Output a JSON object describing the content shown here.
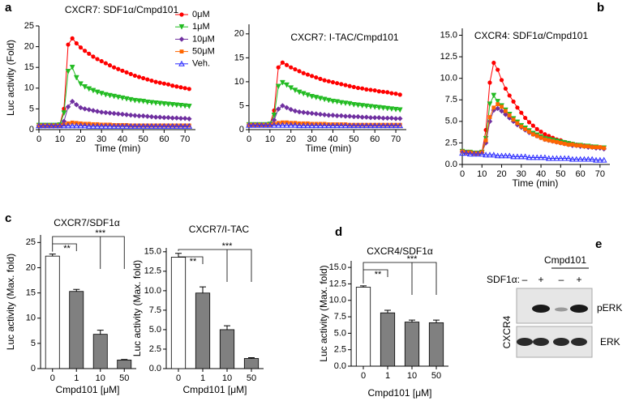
{
  "panel_labels": [
    "a",
    "b",
    "c",
    "d",
    "e"
  ],
  "chart_data": [
    {
      "type": "line",
      "title": "CXCR7: SDF1α/Cmpd101",
      "x_label": "Time (min)",
      "y_label": "Luc activity (Fold)",
      "x": [
        0,
        2,
        4,
        6,
        8,
        10,
        12,
        14,
        16,
        18,
        20,
        22,
        24,
        26,
        28,
        30,
        32,
        34,
        36,
        38,
        40,
        42,
        44,
        46,
        48,
        50,
        52,
        54,
        56,
        58,
        60,
        62,
        64,
        66,
        68,
        70,
        72
      ],
      "xlim": [
        0,
        75
      ],
      "xticks": [
        0,
        10,
        20,
        30,
        40,
        50,
        60,
        70
      ],
      "ylim": [
        0,
        25
      ],
      "yticks": [
        0,
        5,
        10,
        15,
        20,
        25
      ],
      "legend": "upper right",
      "series": [
        {
          "name": "0μM",
          "color": "#ff0000",
          "marker": "circle",
          "values": [
            1,
            1,
            1,
            1,
            1,
            1.2,
            5,
            20.5,
            22,
            20.8,
            19.8,
            19,
            18.3,
            17.6,
            17,
            16.5,
            16,
            15.5,
            15,
            14.6,
            14.2,
            13.8,
            13.4,
            13,
            12.7,
            12.4,
            12.1,
            11.8,
            11.5,
            11.3,
            11.1,
            10.9,
            10.6,
            10.4,
            10.2,
            10,
            9.8
          ]
        },
        {
          "name": "1μM",
          "color": "#22bb22",
          "marker": "triangle-down",
          "values": [
            1,
            1,
            1,
            1,
            1,
            1.1,
            4,
            14,
            15,
            12.5,
            11,
            10.3,
            9.8,
            9.4,
            9,
            8.7,
            8.4,
            8.2,
            8,
            7.8,
            7.6,
            7.4,
            7.2,
            7,
            6.9,
            6.8,
            6.6,
            6.5,
            6.4,
            6.3,
            6.2,
            6.1,
            6,
            5.9,
            5.8,
            5.7,
            5.6
          ]
        },
        {
          "name": "10μM",
          "color": "#7030a0",
          "marker": "diamond",
          "values": [
            1,
            1,
            1,
            1,
            1,
            1,
            2,
            5.5,
            6.8,
            6,
            5.3,
            5,
            4.8,
            4.6,
            4.4,
            4.2,
            4.1,
            4,
            3.9,
            3.8,
            3.7,
            3.6,
            3.5,
            3.4,
            3.3,
            3.3,
            3.2,
            3.1,
            3,
            3,
            2.9,
            2.9,
            2.8,
            2.8,
            2.7,
            2.7,
            2.6
          ]
        },
        {
          "name": "50μM",
          "color": "#ff6600",
          "marker": "square",
          "values": [
            1,
            1,
            1,
            1,
            1,
            1,
            1.2,
            1.5,
            1.7,
            1.6,
            1.5,
            1.4,
            1.4,
            1.3,
            1.3,
            1.2,
            1.2,
            1.2,
            1.1,
            1.1,
            1.1,
            1.1,
            1,
            1,
            1,
            1,
            1,
            1,
            1,
            1,
            1,
            1,
            1,
            1,
            1,
            1,
            1
          ]
        },
        {
          "name": "Veh.",
          "color": "#2a2aff",
          "marker": "triangle-up-open",
          "values": [
            0.9,
            0.9,
            0.9,
            0.9,
            0.9,
            0.9,
            0.9,
            0.9,
            0.9,
            0.9,
            0.9,
            0.9,
            0.8,
            0.8,
            0.8,
            0.8,
            0.8,
            0.8,
            0.8,
            0.8,
            0.8,
            0.8,
            0.8,
            0.8,
            0.8,
            0.8,
            0.8,
            0.8,
            0.8,
            0.8,
            0.8,
            0.8,
            0.8,
            0.8,
            0.8,
            0.8,
            0.8
          ]
        }
      ]
    },
    {
      "type": "line",
      "title": "CXCR7: I-TAC/Cmpd101",
      "x_label": "Time (min)",
      "x": [
        0,
        2,
        4,
        6,
        8,
        10,
        12,
        14,
        16,
        18,
        20,
        22,
        24,
        26,
        28,
        30,
        32,
        34,
        36,
        38,
        40,
        42,
        44,
        46,
        48,
        50,
        52,
        54,
        56,
        58,
        60,
        62,
        64,
        66,
        68,
        70,
        72
      ],
      "xlim": [
        0,
        75
      ],
      "xticks": [
        0,
        10,
        20,
        30,
        40,
        50,
        60,
        70
      ],
      "ylim": [
        0,
        22
      ],
      "yticks": [
        0,
        5,
        10,
        15,
        20
      ],
      "series": [
        {
          "color": "#ff0000",
          "marker": "circle",
          "values": [
            1,
            1,
            1,
            1,
            1,
            1.1,
            4,
            13,
            14,
            13.5,
            13,
            12.6,
            12.2,
            11.8,
            11.5,
            11.2,
            10.9,
            10.6,
            10.3,
            10.1,
            9.9,
            9.7,
            9.5,
            9.3,
            9.1,
            8.9,
            8.7,
            8.6,
            8.4,
            8.3,
            8.2,
            8,
            7.9,
            7.8,
            7.6,
            7.5,
            7.3
          ]
        },
        {
          "color": "#22bb22",
          "marker": "triangle-down",
          "values": [
            1,
            1,
            1,
            1,
            1,
            1.1,
            3,
            9,
            9.8,
            9.3,
            8.7,
            8.2,
            7.8,
            7.5,
            7.2,
            6.9,
            6.7,
            6.5,
            6.3,
            6.1,
            5.9,
            5.8,
            5.6,
            5.5,
            5.4,
            5.2,
            5.1,
            5,
            4.9,
            4.8,
            4.7,
            4.6,
            4.5,
            4.4,
            4.3,
            4.2,
            4.1
          ]
        },
        {
          "color": "#7030a0",
          "marker": "diamond",
          "values": [
            1,
            1,
            1,
            1,
            1,
            1,
            2,
            4.3,
            5,
            4.6,
            4.2,
            3.9,
            3.7,
            3.6,
            3.5,
            3.4,
            3.3,
            3.2,
            3.1,
            3,
            3,
            2.9,
            2.9,
            2.8,
            2.8,
            2.7,
            2.7,
            2.6,
            2.6,
            2.5,
            2.5,
            2.5,
            2.4,
            2.4,
            2.4,
            2.3,
            2.3
          ]
        },
        {
          "color": "#ff6600",
          "marker": "square",
          "values": [
            1,
            1,
            1,
            1,
            1,
            1,
            1.2,
            1.4,
            1.5,
            1.5,
            1.4,
            1.4,
            1.3,
            1.3,
            1.3,
            1.2,
            1.2,
            1.2,
            1.2,
            1.1,
            1.1,
            1.1,
            1.1,
            1.1,
            1,
            1,
            1,
            1,
            1,
            1,
            1,
            1,
            1,
            1,
            1,
            1,
            1
          ]
        },
        {
          "color": "#2a2aff",
          "marker": "triangle-up-open",
          "values": [
            0.9,
            0.9,
            0.9,
            0.9,
            0.9,
            0.9,
            0.9,
            0.9,
            0.9,
            0.9,
            0.9,
            0.9,
            0.8,
            0.8,
            0.8,
            0.8,
            0.8,
            0.8,
            0.8,
            0.8,
            0.8,
            0.8,
            0.8,
            0.8,
            0.8,
            0.8,
            0.8,
            0.8,
            0.8,
            0.8,
            0.8,
            0.8,
            0.8,
            0.8,
            0.8,
            0.8,
            0.8
          ]
        }
      ]
    },
    {
      "type": "line",
      "title": "CXCR4: SDF1α/Cmpd101",
      "x_label": "Time (min)",
      "x": [
        0,
        2,
        4,
        6,
        8,
        10,
        12,
        14,
        16,
        18,
        20,
        22,
        24,
        26,
        28,
        30,
        32,
        34,
        36,
        38,
        40,
        42,
        44,
        46,
        48,
        50,
        52,
        54,
        56,
        58,
        60,
        62,
        64,
        66,
        68,
        70,
        72
      ],
      "xlim": [
        0,
        75
      ],
      "xticks": [
        0,
        10,
        20,
        30,
        40,
        50,
        60,
        70
      ],
      "ylim": [
        0,
        15.8
      ],
      "yticks": [
        {
          "value": 0,
          "label": "0.0"
        },
        2.5,
        {
          "value": 5,
          "label": "5.0"
        },
        7.5,
        {
          "value": 10,
          "label": "10.0"
        },
        12.5,
        {
          "value": 15,
          "label": "15.0"
        }
      ],
      "series": [
        {
          "color": "#ff0000",
          "marker": "circle",
          "values": [
            1.5,
            1.4,
            1.4,
            1.3,
            1.3,
            1.4,
            4,
            9.5,
            11.8,
            11,
            9.8,
            8.8,
            8,
            7.3,
            6.6,
            6,
            5.4,
            4.9,
            4.5,
            4.1,
            3.8,
            3.5,
            3.3,
            3.1,
            2.9,
            2.8,
            2.6,
            2.5,
            2.4,
            2.3,
            2.2,
            2.2,
            2.1,
            2.1,
            2,
            2,
            1.9
          ]
        },
        {
          "color": "#22bb22",
          "marker": "triangle-down",
          "values": [
            1.5,
            1.4,
            1.4,
            1.3,
            1.3,
            1.4,
            3,
            7,
            8,
            7.3,
            6.8,
            6.3,
            5.8,
            5.3,
            4.9,
            4.5,
            4.2,
            3.9,
            3.6,
            3.4,
            3.2,
            3,
            2.9,
            2.8,
            2.7,
            2.6,
            2.5,
            2.4,
            2.3,
            2.2,
            2.2,
            2.1,
            2.1,
            2,
            2,
            1.9,
            1.9
          ]
        },
        {
          "color": "#7030a0",
          "marker": "diamond",
          "values": [
            1.5,
            1.4,
            1.4,
            1.3,
            1.3,
            1.4,
            2.5,
            5,
            6.3,
            6.5,
            6.2,
            5.8,
            5.4,
            5,
            4.6,
            4.3,
            4,
            3.7,
            3.5,
            3.3,
            3.1,
            2.9,
            2.8,
            2.7,
            2.6,
            2.5,
            2.4,
            2.3,
            2.2,
            2.2,
            2.1,
            2.1,
            2,
            2,
            1.9,
            1.9,
            1.8
          ]
        },
        {
          "color": "#ff6600",
          "marker": "square",
          "values": [
            1.5,
            1.4,
            1.4,
            1.3,
            1.3,
            1.4,
            2.8,
            5.5,
            6.6,
            7,
            6.7,
            6.2,
            5.7,
            5.2,
            4.8,
            4.4,
            4.1,
            3.8,
            3.5,
            3.3,
            3.1,
            2.9,
            2.8,
            2.7,
            2.6,
            2.5,
            2.4,
            2.3,
            2.3,
            2.2,
            2.2,
            2.1,
            2.1,
            2,
            2,
            2,
            1.9
          ]
        },
        {
          "color": "#2a2aff",
          "marker": "triangle-up-open",
          "values": [
            1.3,
            1.3,
            1.2,
            1.2,
            1.2,
            1.2,
            1.1,
            1.1,
            1.1,
            1,
            1,
            1,
            1,
            0.9,
            0.9,
            0.9,
            0.9,
            0.8,
            0.8,
            0.8,
            0.8,
            0.8,
            0.7,
            0.7,
            0.7,
            0.7,
            0.7,
            0.7,
            0.6,
            0.6,
            0.6,
            0.6,
            0.6,
            0.6,
            0.5,
            0.5,
            0.5
          ]
        }
      ]
    },
    {
      "type": "bar",
      "title": "CXCR7/SDF1α",
      "x_label": "Cmpd101 [μM]",
      "y_label": "Luc activity (Max. fold)",
      "categories": [
        "0",
        "1",
        "10",
        "50"
      ],
      "values": [
        22.3,
        15.3,
        6.8,
        1.7
      ],
      "errors": [
        0.4,
        0.4,
        0.8,
        0.1
      ],
      "colors": [
        "#ffffff",
        "#808080",
        "#808080",
        "#808080"
      ],
      "ylim": [
        0,
        26.5
      ],
      "yticks": [
        0,
        5,
        10,
        15,
        20,
        25
      ],
      "annotations": [
        "**",
        "***"
      ]
    },
    {
      "type": "bar",
      "title": "CXCR7/I-TAC",
      "x_label": "Cmpd101 [μM]",
      "y_label": "Luc activity (Max. fold)",
      "categories": [
        "0",
        "1",
        "10",
        "50"
      ],
      "values": [
        14.3,
        9.7,
        5.0,
        1.3
      ],
      "errors": [
        0.5,
        0.8,
        0.5,
        0.1
      ],
      "colors": [
        "#ffffff",
        "#808080",
        "#808080",
        "#808080"
      ],
      "ylim": [
        0,
        15.5
      ],
      "yticks": [
        {
          "value": 0,
          "label": "0.0"
        },
        2.5,
        {
          "value": 5,
          "label": "5.0"
        },
        7.5,
        {
          "value": 10,
          "label": "10.0"
        },
        12.5,
        {
          "value": 15,
          "label": "15.0"
        }
      ],
      "annotations": [
        "**",
        "***"
      ]
    },
    {
      "type": "bar",
      "title": "CXCR4/SDF1α",
      "x_label": "Cmpd101 [μM]",
      "y_label": "Luc activity (Max. fold)",
      "categories": [
        "0",
        "1",
        "10",
        "50"
      ],
      "values": [
        12.0,
        8.1,
        6.7,
        6.6
      ],
      "errors": [
        0.2,
        0.4,
        0.3,
        0.4
      ],
      "colors": [
        "#ffffff",
        "#808080",
        "#808080",
        "#808080"
      ],
      "ylim": [
        0,
        16
      ],
      "yticks": [
        {
          "value": 0,
          "label": "0.0"
        },
        2.5,
        {
          "value": 5,
          "label": "5.0"
        },
        7.5,
        {
          "value": 10,
          "label": "10.0"
        },
        12.5,
        {
          "value": 15,
          "label": "15.0"
        }
      ],
      "annotations": [
        "**",
        "***"
      ]
    }
  ],
  "blot": {
    "title": "Cmpd101",
    "treatment_label": "SDF1α:",
    "lanes": [
      "–",
      "+",
      "–",
      "+"
    ],
    "bands": [
      "pERK",
      "ERK"
    ],
    "side_label": "CXCR4"
  }
}
